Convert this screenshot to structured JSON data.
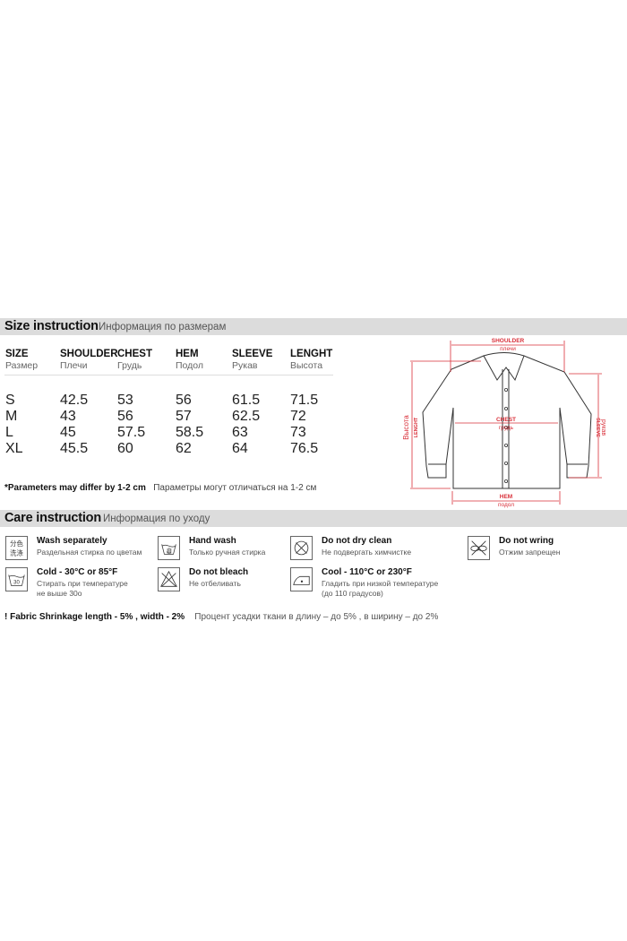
{
  "size_section": {
    "title": "Size instruction",
    "subtitle": "Информация по размерам",
    "columns": [
      {
        "en": "SIZE",
        "ru": "Размер",
        "values": [
          "S",
          "M",
          "L",
          "XL"
        ]
      },
      {
        "en": "SHOULDER",
        "ru": "Плечи",
        "values": [
          "42.5",
          "43",
          "45",
          "45.5"
        ]
      },
      {
        "en": "CHEST",
        "ru": "Грудь",
        "values": [
          "53",
          "56",
          "57.5",
          "60"
        ]
      },
      {
        "en": "HEM",
        "ru": "Подол",
        "values": [
          "56",
          "57",
          "58.5",
          "62"
        ]
      },
      {
        "en": "SLEEVE",
        "ru": "Рукав",
        "values": [
          "61.5",
          "62.5",
          "63",
          "64"
        ]
      },
      {
        "en": "LENGHT",
        "ru": "Высота",
        "values": [
          "71.5",
          "72",
          "73",
          "76.5"
        ]
      }
    ],
    "note_en": "*Parameters may differ by 1-2 cm",
    "note_ru": "Параметры могут отличаться на 1-2 см"
  },
  "diagram": {
    "accent_color": "#d9303a",
    "shoulder_en": "SHOULDER",
    "shoulder_ru": "плечи",
    "chest_en": "CHEST",
    "chest_ru": "грудь",
    "hem_en": "HEM",
    "hem_ru": "подол",
    "length_en": "LENGHT",
    "length_ru": "Высота",
    "sleeve_en": "SLEEVE",
    "sleeve_ru": "рукав"
  },
  "care_section": {
    "title": "Care instruction",
    "subtitle": "Информация по уходу",
    "items": [
      {
        "icon": "wash-separately-icon",
        "icon_text": "分色\n洗涤",
        "title": "Wash separately",
        "sub": "Раздельная стирка по цветам"
      },
      {
        "icon": "hand-wash-icon",
        "title": "Hand wash",
        "sub": "Только ручная стирка"
      },
      {
        "icon": "do-not-dry-clean-icon",
        "title": "Do not dry clean",
        "sub": "Не подвергать химчистке"
      },
      {
        "icon": "do-not-wring-icon",
        "title": "Do not wring",
        "sub": "Отжим запрещен"
      },
      {
        "icon": "wash-30-icon",
        "icon_text": "30",
        "title": "Cold - 30°C or 85°F",
        "sub": "Стирать при температуре\nне выше 30о"
      },
      {
        "icon": "do-not-bleach-icon",
        "title": "Do not bleach",
        "sub": "Не отбеливать"
      },
      {
        "icon": "iron-low-icon",
        "title": "Cool - 110°C or 230°F",
        "sub": "Гладить при низкой температуре\n(до 110 градусов)"
      }
    ],
    "shrink_en": "!  Fabric Shrinkage length - 5% , width - 2%",
    "shrink_ru": "Процент усадки ткани в длину – до 5% , в ширину – до 2%"
  }
}
